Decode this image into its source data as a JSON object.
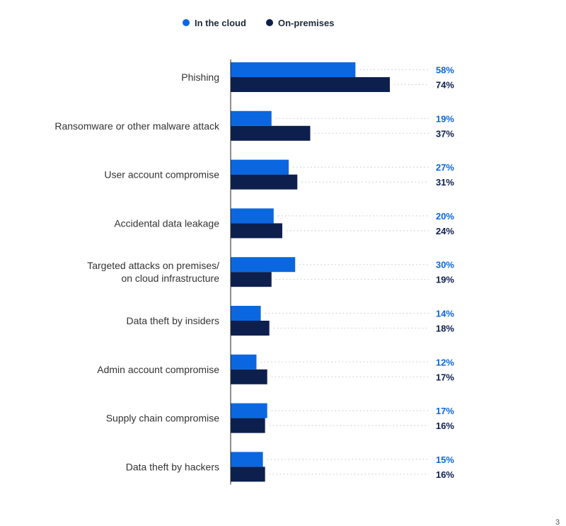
{
  "colors": {
    "cloud": "#0b67e0",
    "onprem": "#0d1f4d",
    "dots": "#c9ced6",
    "axis": "#222222"
  },
  "page_number": "3",
  "chart_data": {
    "type": "bar",
    "orientation": "horizontal",
    "legend_position": "top",
    "grid": false,
    "xlim": [
      0,
      100
    ],
    "value_suffix": "%",
    "categories": [
      "Phishing",
      "Ransomware or other malware attack",
      "User account compromise",
      "Accidental data leakage",
      "Targeted attacks on premises/\non cloud infrastructure",
      "Data theft by insiders",
      "Admin account compromise",
      "Supply chain compromise",
      "Data theft by hackers"
    ],
    "series": [
      {
        "name": "In the cloud",
        "values": [
          58,
          19,
          27,
          20,
          30,
          14,
          12,
          17,
          15
        ]
      },
      {
        "name": "On-premises",
        "values": [
          74,
          37,
          31,
          24,
          19,
          18,
          17,
          16,
          16
        ]
      }
    ]
  }
}
